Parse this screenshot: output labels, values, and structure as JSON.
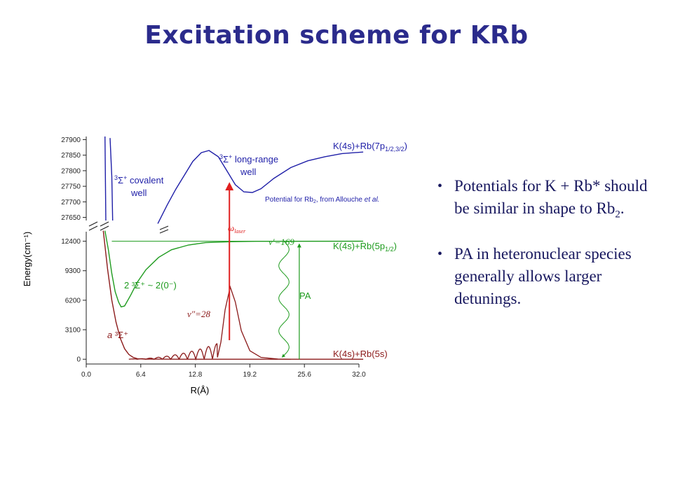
{
  "title": "Excitation scheme for KRb",
  "bullets": [
    {
      "pre": "Potentials for K + Rb* should be similar in shape to Rb",
      "sub": "2",
      "post": "."
    },
    {
      "pre": "PA in heteronuclear species generally allows larger detunings.",
      "sub": "",
      "post": ""
    }
  ],
  "chart_data": {
    "type": "line",
    "xlabel": "R(Å)",
    "ylabel": "Energy(cm⁻¹)",
    "x_ticks": [
      "0.0",
      "6.4",
      "12.8",
      "19.2",
      "25.6",
      "32.0"
    ],
    "y_ticks_lower": [
      "0",
      "3100",
      "6200",
      "9300",
      "12400"
    ],
    "y_ticks_upper": [
      "27650",
      "27700",
      "27750",
      "27800",
      "27850",
      "27900"
    ],
    "xlim": [
      0,
      32
    ],
    "ylim_lower": [
      -500,
      13400
    ],
    "ylim_upper": [
      27640,
      27910
    ],
    "colors": {
      "upper": "#1f1fa8",
      "middle": "#1e9b1e",
      "lower": "#8b1a1a",
      "laser": "#e02020",
      "title": "#2b2b8c",
      "bullets": "#17175e"
    },
    "series": [
      {
        "name": "³Σ⁺ long-range well",
        "axis": "upper",
        "points": [
          [
            8.4,
            27630
          ],
          [
            9.5,
            27690
          ],
          [
            10.5,
            27740
          ],
          [
            11.5,
            27785
          ],
          [
            12.5,
            27830
          ],
          [
            13.5,
            27858
          ],
          [
            14.4,
            27865
          ],
          [
            15.5,
            27845
          ],
          [
            16.5,
            27800
          ],
          [
            17.5,
            27755
          ],
          [
            18.5,
            27732
          ],
          [
            19.5,
            27730
          ],
          [
            20.5,
            27742
          ],
          [
            22,
            27775
          ],
          [
            24,
            27810
          ],
          [
            26,
            27832
          ],
          [
            28,
            27845
          ],
          [
            30,
            27855
          ],
          [
            32.5,
            27860
          ]
        ]
      },
      {
        "name": "³Σ⁺ covalent well",
        "axis": "upper",
        "points": [
          [
            2.8,
            27905
          ],
          [
            3,
            27780
          ],
          [
            3.1,
            27640
          ]
        ]
      },
      {
        "name": "2 ³Σ⁺ ~ 2(0⁻)",
        "axis": "lower",
        "points": [
          [
            2.2,
            13500
          ],
          [
            2.6,
            11500
          ],
          [
            3.0,
            9000
          ],
          [
            3.4,
            7100
          ],
          [
            3.8,
            6000
          ],
          [
            4.1,
            5500
          ],
          [
            4.5,
            5600
          ],
          [
            5.2,
            6700
          ],
          [
            6.0,
            8100
          ],
          [
            7.0,
            9400
          ],
          [
            8.5,
            10700
          ],
          [
            10,
            11500
          ],
          [
            12,
            12000
          ],
          [
            14,
            12250
          ],
          [
            17,
            12350
          ],
          [
            20,
            12390
          ],
          [
            32.5,
            12400
          ]
        ]
      },
      {
        "name": "a ³Σ⁺",
        "axis": "lower",
        "points": [
          [
            2.0,
            13500
          ],
          [
            2.5,
            9500
          ],
          [
            3,
            6200
          ],
          [
            3.5,
            3900
          ],
          [
            4,
            2200
          ],
          [
            4.5,
            1100
          ],
          [
            5,
            500
          ],
          [
            5.5,
            200
          ],
          [
            6,
            60
          ],
          [
            7,
            15
          ],
          [
            9,
            5
          ],
          [
            12,
            2
          ],
          [
            32.5,
            0
          ]
        ]
      }
    ],
    "upper_labels": {
      "k7p": "K(4s)+Rb(7p",
      "k7p_sub": "1/2,3/2",
      "covalent": "covalent",
      "covalent2": "well",
      "longrange": "long-range",
      "longrange2": "well",
      "potential": "Potential for Rb",
      "potential_sub": "2",
      "potential_tail": ", from Allouche",
      "etal": "et al."
    },
    "lower_labels": {
      "k5p": "K(4s)+Rb(5p",
      "k5p_sub": "1/2",
      "k5s": "K(4s)+Rb(5s)",
      "state2": "2 ³Σ⁺ ~ 2(0⁻)",
      "state_a": "a",
      "state_a_rest": "³Σ⁺",
      "vprime": "v′=169",
      "vdouble": "v″=28",
      "pa": "PA",
      "omega": "ω",
      "omega_sub": "laser",
      "sigma": "³Σ⁺"
    },
    "markers": {
      "laser_R": 16.8,
      "pa_R": 25.0,
      "vprime_energy": 12400,
      "vdouble_peak": 7600
    }
  }
}
